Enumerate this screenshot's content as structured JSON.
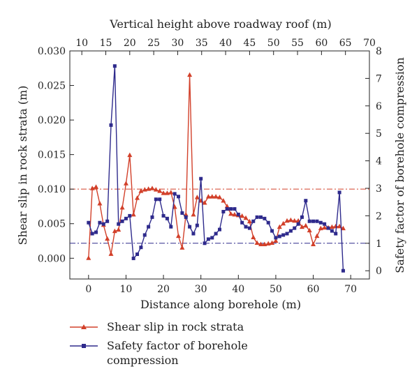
{
  "chart_data": {
    "type": "line",
    "xlabel": "Distance along borehole (m)",
    "x2label": "Vertical height above roadway roof (m)",
    "ylabel": "Shear slip in rock strata (m)",
    "y2label": "Safety factor of borehole compression",
    "xlim": [
      -5,
      75
    ],
    "ylim": [
      -0.003,
      0.03
    ],
    "y2lim": [
      -0.3,
      8
    ],
    "x2lim": [
      7.5,
      70
    ],
    "x_ticks": [
      0,
      10,
      20,
      30,
      40,
      50,
      60,
      70
    ],
    "x2_ticks": [
      10,
      15,
      20,
      25,
      30,
      35,
      40,
      45,
      50,
      55,
      60,
      65,
      70
    ],
    "y_ticks": [
      "0.000",
      "0.005",
      "0.010",
      "0.015",
      "0.020",
      "0.025",
      "0.030"
    ],
    "y2_ticks": [
      0,
      1,
      2,
      3,
      4,
      5,
      6,
      7,
      8
    ],
    "grid": false,
    "legend_position": "bottom",
    "reference_lines": [
      {
        "axis": "y",
        "value": 0.01,
        "color": "#d2402a"
      },
      {
        "axis": "y2",
        "value": 1.0,
        "color": "#2e2a8c"
      }
    ],
    "series": [
      {
        "name": "Shear slip in rock strata",
        "axis": "y",
        "color": "#d2402a",
        "marker": "triangle",
        "x": [
          0,
          1,
          2,
          3,
          4,
          5,
          6,
          7,
          8,
          9,
          10,
          11,
          12,
          13,
          14,
          15,
          16,
          17,
          18,
          19,
          20,
          21,
          22,
          23,
          24,
          25,
          26,
          27,
          28,
          29,
          30,
          31,
          32,
          33,
          34,
          35,
          36,
          37,
          38,
          39,
          40,
          41,
          42,
          43,
          44,
          45,
          46,
          47,
          48,
          49,
          50,
          51,
          52,
          53,
          54,
          55,
          56,
          57,
          58,
          59,
          60,
          61,
          62,
          63,
          64,
          65,
          66,
          67,
          68
        ],
        "values": [
          0.0,
          0.0101,
          0.0103,
          0.0079,
          0.0048,
          0.0028,
          0.0006,
          0.0039,
          0.0041,
          0.0073,
          0.0108,
          0.0149,
          0.0063,
          0.0087,
          0.0097,
          0.0099,
          0.01,
          0.0101,
          0.0099,
          0.0097,
          0.0094,
          0.0094,
          0.0095,
          0.0074,
          0.0032,
          0.0015,
          0.0063,
          0.0265,
          0.0063,
          0.0088,
          0.0083,
          0.008,
          0.0089,
          0.0089,
          0.0089,
          0.0088,
          0.0083,
          0.0075,
          0.0064,
          0.0063,
          0.0062,
          0.0061,
          0.0058,
          0.0053,
          0.003,
          0.0022,
          0.002,
          0.002,
          0.0021,
          0.0022,
          0.0025,
          0.0045,
          0.005,
          0.0054,
          0.0055,
          0.0054,
          0.0054,
          0.0045,
          0.0047,
          0.004,
          0.002,
          0.0032,
          0.0043,
          0.0044,
          0.0044,
          0.0045,
          0.0046,
          0.0046,
          0.0043
        ]
      },
      {
        "name": "Safety factor of borehole compression",
        "axis": "y2",
        "color": "#2e2a8c",
        "marker": "square",
        "x": [
          0,
          1,
          2,
          3,
          4,
          5,
          6,
          7,
          8,
          9,
          10,
          11,
          12,
          13,
          14,
          15,
          16,
          17,
          18,
          19,
          20,
          21,
          22,
          23,
          24,
          25,
          26,
          27,
          28,
          29,
          30,
          31,
          32,
          33,
          34,
          35,
          36,
          37,
          38,
          39,
          40,
          41,
          42,
          43,
          44,
          45,
          46,
          47,
          48,
          49,
          50,
          51,
          52,
          53,
          54,
          55,
          56,
          57,
          58,
          59,
          60,
          61,
          62,
          63,
          64,
          65,
          66,
          67,
          68
        ],
        "values": [
          1.75,
          1.35,
          1.4,
          1.75,
          1.7,
          1.8,
          5.3,
          7.45,
          1.7,
          1.8,
          1.9,
          2.0,
          0.45,
          0.6,
          0.85,
          1.3,
          1.6,
          1.95,
          2.6,
          2.6,
          2.0,
          1.9,
          1.6,
          2.8,
          2.7,
          2.1,
          1.95,
          1.6,
          1.35,
          1.65,
          3.35,
          1.0,
          1.15,
          1.2,
          1.35,
          1.5,
          2.15,
          2.25,
          2.25,
          2.25,
          2.05,
          1.75,
          1.6,
          1.55,
          1.8,
          1.95,
          1.95,
          1.9,
          1.75,
          1.45,
          1.2,
          1.25,
          1.3,
          1.35,
          1.45,
          1.55,
          1.7,
          1.95,
          2.55,
          1.8,
          1.8,
          1.8,
          1.75,
          1.7,
          1.55,
          1.45,
          1.35,
          2.85,
          0.0
        ],
        "x_trim": 68
      }
    ]
  }
}
